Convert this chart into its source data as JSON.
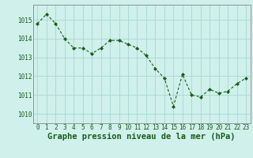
{
  "x": [
    0,
    1,
    2,
    3,
    4,
    5,
    6,
    7,
    8,
    9,
    10,
    11,
    12,
    13,
    14,
    15,
    16,
    17,
    18,
    19,
    20,
    21,
    22,
    23
  ],
  "y": [
    1014.8,
    1015.3,
    1014.8,
    1014.0,
    1013.5,
    1013.5,
    1013.2,
    1013.5,
    1013.9,
    1013.9,
    1013.7,
    1013.5,
    1013.1,
    1012.4,
    1011.9,
    1010.4,
    1012.1,
    1011.0,
    1010.9,
    1011.3,
    1011.1,
    1011.2,
    1011.6,
    1011.9
  ],
  "line_color": "#1a5c1a",
  "marker_color": "#1a5c1a",
  "bg_color": "#cff0eb",
  "grid_color": "#a8d8d0",
  "xlabel": "Graphe pression niveau de la mer (hPa)",
  "xlabel_color": "#1a5c1a",
  "ylim": [
    1009.5,
    1015.8
  ],
  "yticks": [
    1010,
    1011,
    1012,
    1013,
    1014,
    1015
  ],
  "xticks": [
    0,
    1,
    2,
    3,
    4,
    5,
    6,
    7,
    8,
    9,
    10,
    11,
    12,
    13,
    14,
    15,
    16,
    17,
    18,
    19,
    20,
    21,
    22,
    23
  ],
  "tick_color": "#1a5c1a",
  "tick_fontsize": 5.5,
  "xlabel_fontsize": 7.5
}
